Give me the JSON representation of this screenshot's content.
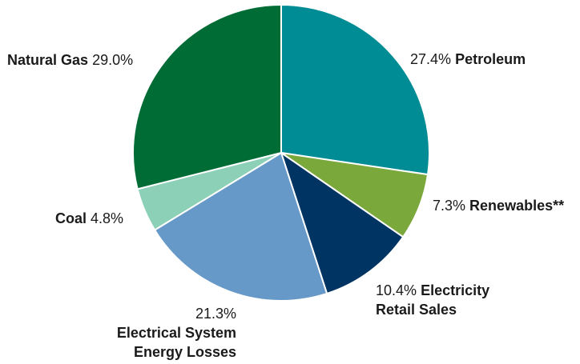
{
  "chart_data": {
    "type": "pie",
    "title": "",
    "slices": [
      {
        "name": "Petroleum",
        "value": 27.4,
        "label_value": "27.4%",
        "color": "#008c95"
      },
      {
        "name": "Renewables**",
        "value": 7.3,
        "label_value": "7.3%",
        "color": "#7aa83b"
      },
      {
        "name": "Electricity Retail Sales",
        "value": 10.4,
        "label_value": "10.4%",
        "color": "#003462"
      },
      {
        "name": "Electrical System Energy Losses",
        "value": 21.3,
        "label_value": "21.3%",
        "color": "#6699c8"
      },
      {
        "name": "Coal",
        "value": 4.8,
        "label_value": "4.8%",
        "color": "#8dd0b8"
      },
      {
        "name": "Natural Gas",
        "value": 29.0,
        "label_value": "29.0%",
        "color": "#006c35"
      }
    ]
  },
  "labels": {
    "petroleum": {
      "pct": "27.4%",
      "name": "Petroleum"
    },
    "renewables": {
      "pct": "7.3%",
      "name": "Renewables**"
    },
    "electricity": {
      "pct": "10.4%",
      "name_line1": "Electricity",
      "name_line2": "Retail Sales"
    },
    "losses": {
      "pct": "21.3%",
      "name_line1": "Electrical System",
      "name_line2": "Energy Losses"
    },
    "coal": {
      "name": "Coal",
      "pct": "4.8%"
    },
    "naturalgas": {
      "name": "Natural Gas",
      "pct": "29.0%"
    }
  }
}
